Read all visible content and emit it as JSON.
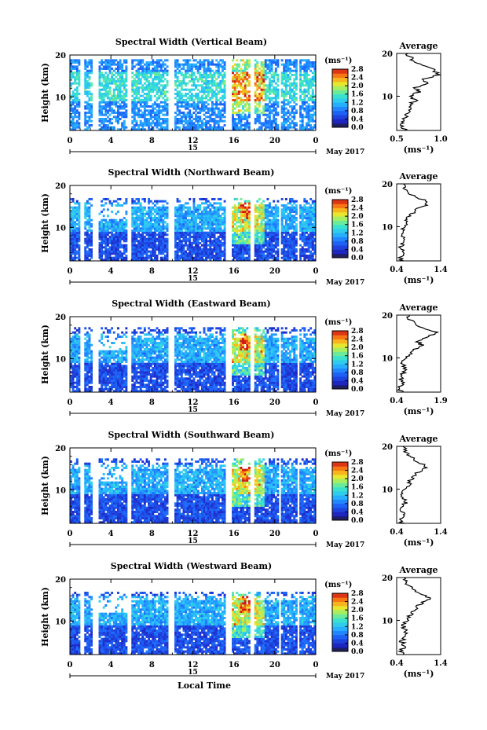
{
  "figure": {
    "x_axis_title": "Local Time",
    "date_label": "May 2017",
    "day_label": "15",
    "x_tick_labels": [
      "0",
      "4",
      "8",
      "12",
      "16",
      "20",
      "0"
    ],
    "y_tick_labels": [
      "10",
      "20"
    ],
    "y_label": "Height (km)",
    "colorbar_unit": "(ms⁻¹)",
    "colorbar_ticks": [
      "0.0",
      "0.4",
      "0.8",
      "1.2",
      "1.6",
      "2.0",
      "2.4",
      "2.8"
    ],
    "average_title": "Average",
    "average_unit": "(ms⁻¹)",
    "colors": {
      "low": "#2020b0",
      "mid": "#20a0ff",
      "mid2": "#40e0c0",
      "warm": "#ffd020",
      "high": "#e02000"
    }
  },
  "chart_data": [
    {
      "type": "heatmap",
      "title": "Spectral Width (Vertical Beam)",
      "xlabel": "Local Time",
      "ylabel": "Height (km)",
      "xlim": [
        0,
        24
      ],
      "ylim": [
        2,
        20
      ],
      "zlim": [
        0.0,
        2.8
      ],
      "profile": {
        "title": "Average",
        "xlabel": "(ms⁻¹)",
        "xticks": [
          "0.5",
          "1.0"
        ],
        "xlim": [
          0.5,
          1.0
        ],
        "height_km": [
          2,
          3,
          4,
          5,
          6,
          7,
          8,
          9,
          10,
          11,
          12,
          13,
          14,
          15,
          16,
          17,
          18,
          19,
          20
        ],
        "values": [
          0.62,
          0.55,
          0.58,
          0.6,
          0.62,
          0.68,
          0.64,
          0.72,
          0.66,
          0.75,
          0.72,
          0.85,
          0.82,
          0.97,
          0.93,
          0.84,
          0.7,
          0.66,
          0.6
        ]
      }
    },
    {
      "type": "heatmap",
      "title": "Spectral Width (Northward Beam)",
      "xlabel": "Local Time",
      "ylabel": "Height (km)",
      "xlim": [
        0,
        24
      ],
      "ylim": [
        2,
        20
      ],
      "zlim": [
        0.0,
        2.8
      ],
      "profile": {
        "title": "Average",
        "xlabel": "(ms⁻¹)",
        "xticks": [
          "0.4",
          "1.4"
        ],
        "xlim": [
          0.4,
          1.4
        ],
        "height_km": [
          2,
          3,
          4,
          5,
          6,
          7,
          8,
          9,
          10,
          11,
          12,
          13,
          14,
          15,
          16,
          17,
          18,
          19,
          20
        ],
        "values": [
          0.5,
          0.48,
          0.55,
          0.5,
          0.52,
          0.58,
          0.54,
          0.52,
          0.58,
          0.62,
          0.66,
          0.75,
          0.8,
          1.12,
          1.06,
          0.85,
          0.66,
          0.58,
          0.55
        ]
      }
    },
    {
      "type": "heatmap",
      "title": "Spectral Width (Eastward Beam)",
      "xlabel": "Local Time",
      "ylabel": "Height (km)",
      "xlim": [
        0,
        24
      ],
      "ylim": [
        2,
        20
      ],
      "zlim": [
        0.0,
        2.8
      ],
      "profile": {
        "title": "Average",
        "xlabel": "(ms⁻¹)",
        "xticks": [
          "0.4",
          "1.9"
        ],
        "xlim": [
          0.4,
          1.9
        ],
        "height_km": [
          2,
          3,
          4,
          5,
          6,
          7,
          8,
          9,
          10,
          11,
          12,
          13,
          14,
          15,
          16,
          17,
          18,
          19,
          20
        ],
        "values": [
          0.55,
          0.5,
          0.62,
          0.56,
          0.6,
          0.68,
          0.62,
          0.6,
          0.7,
          0.86,
          1.0,
          1.25,
          1.1,
          1.5,
          1.75,
          1.3,
          1.0,
          0.85,
          0.8
        ]
      }
    },
    {
      "type": "heatmap",
      "title": "Spectral Width (Southward Beam)",
      "xlabel": "Local Time",
      "ylabel": "Height (km)",
      "xlim": [
        0,
        24
      ],
      "ylim": [
        2,
        20
      ],
      "zlim": [
        0.0,
        2.8
      ],
      "profile": {
        "title": "Average",
        "xlabel": "(ms⁻¹)",
        "xticks": [
          "0.4",
          "1.4"
        ],
        "xlim": [
          0.4,
          1.4
        ],
        "height_km": [
          2,
          3,
          4,
          5,
          6,
          7,
          8,
          9,
          10,
          11,
          12,
          13,
          14,
          15,
          16,
          17,
          18,
          19,
          20
        ],
        "values": [
          0.52,
          0.5,
          0.56,
          0.52,
          0.55,
          0.6,
          0.56,
          0.55,
          0.6,
          0.68,
          0.72,
          0.8,
          0.88,
          1.1,
          0.95,
          0.8,
          0.66,
          0.58,
          0.55
        ]
      }
    },
    {
      "type": "heatmap",
      "title": "Spectral Width (Westward Beam)",
      "xlabel": "Local Time",
      "ylabel": "Height (km)",
      "xlim": [
        0,
        24
      ],
      "ylim": [
        2,
        20
      ],
      "zlim": [
        0.0,
        2.8
      ],
      "profile": {
        "title": "Average",
        "xlabel": "(ms⁻¹)",
        "xticks": [
          "0.4",
          "1.4"
        ],
        "xlim": [
          0.4,
          1.4
        ],
        "height_km": [
          2,
          3,
          4,
          5,
          6,
          7,
          8,
          9,
          10,
          11,
          12,
          13,
          14,
          15,
          16,
          17,
          18,
          19,
          20
        ],
        "values": [
          0.52,
          0.5,
          0.58,
          0.52,
          0.56,
          0.62,
          0.58,
          0.55,
          0.62,
          0.7,
          0.75,
          0.85,
          0.95,
          1.15,
          1.02,
          0.82,
          0.68,
          0.6,
          0.56
        ]
      }
    }
  ]
}
